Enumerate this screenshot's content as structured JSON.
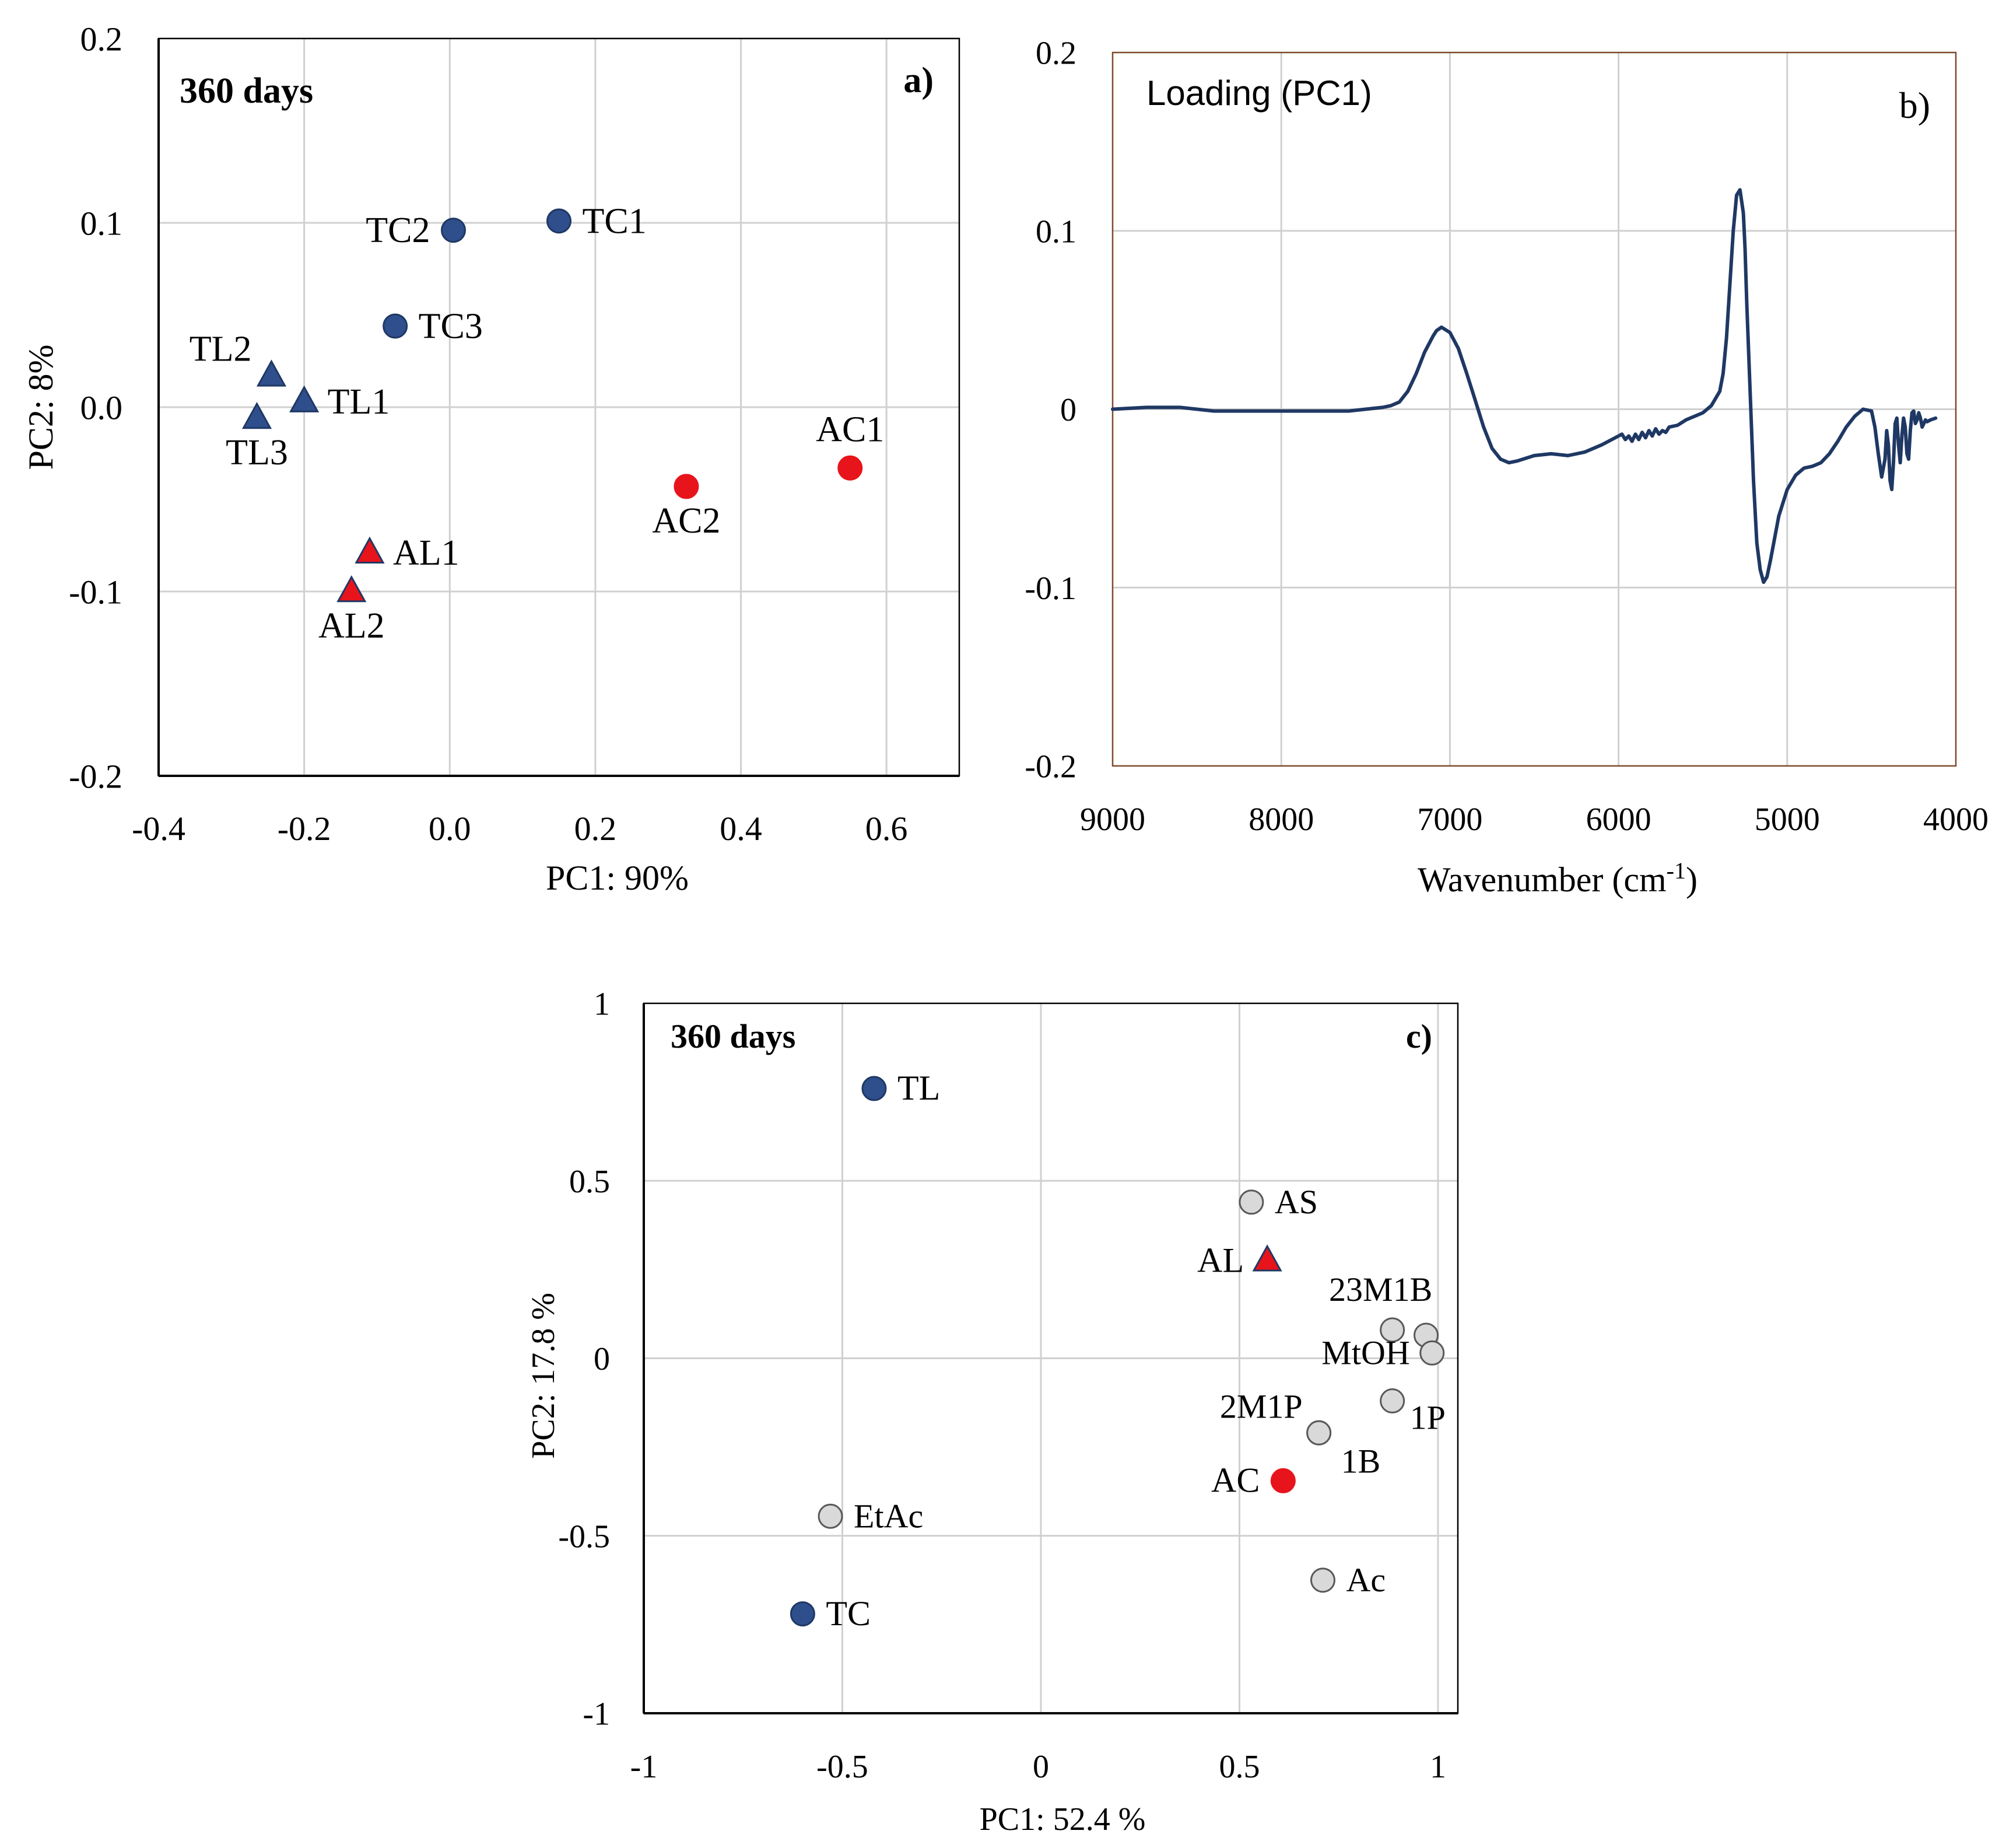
{
  "chart_data": [
    {
      "type": "scatter",
      "panel_label": "a)",
      "title": "360 days",
      "xlabel": "PC1: 90%",
      "ylabel": "PC2: 8%",
      "xlim": [
        -0.4,
        0.7
      ],
      "ylim": [
        -0.2,
        0.2
      ],
      "xticks": [
        -0.4,
        -0.2,
        0.0,
        0.2,
        0.4,
        0.6
      ],
      "xtick_labels": [
        "-0.4",
        "-0.2",
        "0.0",
        "0.2",
        "0.4",
        "0.6"
      ],
      "yticks": [
        -0.2,
        -0.1,
        0.0,
        0.1,
        0.2
      ],
      "ytick_labels": [
        "-0.2",
        "-0.1",
        "0.0",
        "0.1",
        "0.2"
      ],
      "grid": true,
      "points": [
        {
          "label": "TC1",
          "x": 0.15,
          "y": 0.101,
          "marker": "circle",
          "color": "#2F4E8C",
          "label_pos": "right"
        },
        {
          "label": "TC2",
          "x": 0.005,
          "y": 0.096,
          "marker": "circle",
          "color": "#2F4E8C",
          "label_pos": "left"
        },
        {
          "label": "TC3",
          "x": -0.075,
          "y": 0.044,
          "marker": "circle",
          "color": "#2F4E8C",
          "label_pos": "right"
        },
        {
          "label": "TL1",
          "x": -0.2,
          "y": 0.003,
          "marker": "triangle",
          "color": "#2F4E8C",
          "label_pos": "right"
        },
        {
          "label": "TL2",
          "x": -0.245,
          "y": 0.017,
          "marker": "triangle",
          "color": "#2F4E8C",
          "label_pos": "upper-left"
        },
        {
          "label": "TL3",
          "x": -0.265,
          "y": -0.006,
          "marker": "triangle",
          "color": "#2F4E8C",
          "label_pos": "below"
        },
        {
          "label": "AC1",
          "x": 0.55,
          "y": -0.033,
          "marker": "circle",
          "color": "#E8141C",
          "label_pos": "above"
        },
        {
          "label": "AC2",
          "x": 0.325,
          "y": -0.043,
          "marker": "circle",
          "color": "#E8141C",
          "label_pos": "below"
        },
        {
          "label": "AL1",
          "x": -0.11,
          "y": -0.079,
          "marker": "triangle",
          "color": "#E8141C",
          "label_pos": "right"
        },
        {
          "label": "AL2",
          "x": -0.135,
          "y": -0.1,
          "marker": "triangle",
          "color": "#E8141C",
          "label_pos": "below"
        }
      ]
    },
    {
      "type": "line",
      "panel_label": "b)",
      "title": "Loading (PC1)",
      "xlabel": "Wavenumber (cm",
      "xlabel_sup": "-1",
      "xlabel_end": ")",
      "ylabel": "",
      "xlim": [
        9000,
        4000
      ],
      "ylim": [
        -0.2,
        0.2
      ],
      "xticks": [
        9000,
        8000,
        7000,
        6000,
        5000,
        4000
      ],
      "xtick_labels": [
        "9000",
        "8000",
        "7000",
        "6000",
        "5000",
        "4000"
      ],
      "yticks": [
        -0.2,
        -0.1,
        0,
        0.1,
        0.2
      ],
      "ytick_labels": [
        "-0.2",
        "-0.1",
        "0",
        "0.1",
        "0.2"
      ],
      "grid": true,
      "line_color": "#1F3864",
      "series": [
        {
          "name": "Loading (PC1)",
          "x": [
            9000,
            8800,
            8700,
            8600,
            8500,
            8400,
            8300,
            8200,
            8100,
            8000,
            7800,
            7600,
            7500,
            7400,
            7350,
            7300,
            7250,
            7200,
            7150,
            7100,
            7080,
            7050,
            7000,
            6950,
            6900,
            6850,
            6800,
            6750,
            6700,
            6650,
            6600,
            6500,
            6400,
            6300,
            6200,
            6100,
            6000,
            5980,
            5960,
            5940,
            5920,
            5900,
            5880,
            5860,
            5840,
            5820,
            5800,
            5780,
            5760,
            5740,
            5720,
            5700,
            5650,
            5600,
            5550,
            5500,
            5450,
            5400,
            5380,
            5360,
            5340,
            5320,
            5300,
            5280,
            5260,
            5250,
            5240,
            5220,
            5200,
            5180,
            5160,
            5140,
            5120,
            5100,
            5080,
            5050,
            5000,
            4950,
            4900,
            4850,
            4800,
            4750,
            4700,
            4650,
            4600,
            4550,
            4500,
            4480,
            4460,
            4440,
            4420,
            4410,
            4400,
            4390,
            4380,
            4370,
            4360,
            4350,
            4340,
            4330,
            4320,
            4310,
            4300,
            4290,
            4280,
            4270,
            4260,
            4250,
            4240,
            4230,
            4220,
            4210,
            4200,
            4190,
            4180,
            4170,
            4150,
            4120
          ],
          "y": [
            0.0,
            0.001,
            0.001,
            0.001,
            0.0,
            -0.001,
            -0.001,
            -0.001,
            -0.001,
            -0.001,
            -0.001,
            -0.001,
            0.0,
            0.001,
            0.002,
            0.004,
            0.01,
            0.02,
            0.032,
            0.041,
            0.044,
            0.046,
            0.043,
            0.034,
            0.02,
            0.005,
            -0.01,
            -0.022,
            -0.028,
            -0.03,
            -0.029,
            -0.026,
            -0.025,
            -0.026,
            -0.024,
            -0.02,
            -0.015,
            -0.014,
            -0.017,
            -0.015,
            -0.018,
            -0.014,
            -0.017,
            -0.013,
            -0.016,
            -0.012,
            -0.015,
            -0.011,
            -0.014,
            -0.012,
            -0.013,
            -0.01,
            -0.009,
            -0.006,
            -0.004,
            -0.002,
            0.002,
            0.01,
            0.02,
            0.04,
            0.07,
            0.1,
            0.12,
            0.123,
            0.11,
            0.09,
            0.06,
            0.01,
            -0.04,
            -0.075,
            -0.09,
            -0.097,
            -0.094,
            -0.085,
            -0.075,
            -0.06,
            -0.045,
            -0.037,
            -0.033,
            -0.032,
            -0.03,
            -0.025,
            -0.018,
            -0.01,
            -0.004,
            0.0,
            -0.001,
            -0.01,
            -0.025,
            -0.038,
            -0.028,
            -0.012,
            -0.02,
            -0.04,
            -0.045,
            -0.03,
            -0.008,
            -0.005,
            -0.02,
            -0.03,
            -0.015,
            -0.005,
            -0.01,
            -0.025,
            -0.028,
            -0.012,
            -0.002,
            -0.001,
            -0.008,
            -0.006,
            -0.002,
            -0.005,
            -0.01,
            -0.008,
            -0.006,
            -0.007,
            -0.006,
            -0.005
          ]
        }
      ]
    },
    {
      "type": "scatter",
      "panel_label": "c)",
      "title": "360 days",
      "xlabel": "PC1: 52.4 %",
      "ylabel": "PC2: 17.8 %",
      "xlim": [
        -1,
        1.05
      ],
      "ylim": [
        -1,
        1
      ],
      "xticks": [
        -1,
        -0.5,
        0,
        0.5,
        1
      ],
      "xtick_labels": [
        "-1",
        "-0.5",
        "0",
        "0.5",
        "1"
      ],
      "yticks": [
        -1,
        -0.5,
        0,
        0.5,
        1
      ],
      "ytick_labels": [
        "-1",
        "-0.5",
        "0",
        "0.5",
        "1"
      ],
      "grid": true,
      "points": [
        {
          "label": "TL",
          "x": -0.42,
          "y": 0.76,
          "marker": "circle",
          "color": "#2F4E8C",
          "label_pos": "right"
        },
        {
          "label": "TC",
          "x": -0.6,
          "y": -0.72,
          "marker": "circle",
          "color": "#2F4E8C",
          "label_pos": "right"
        },
        {
          "label": "AL",
          "x": 0.57,
          "y": 0.275,
          "marker": "triangle",
          "color": "#E8141C",
          "label_pos": "left"
        },
        {
          "label": "AC",
          "x": 0.61,
          "y": -0.345,
          "marker": "circle",
          "color": "#E8141C",
          "label_pos": "left"
        },
        {
          "label": "AS",
          "x": 0.53,
          "y": 0.44,
          "marker": "circle",
          "color": "#D9D9D9",
          "label_pos": "right"
        },
        {
          "label": "23M1B",
          "x": 0.885,
          "y": 0.08,
          "marker": "circle",
          "color": "#D9D9D9",
          "label_pos": "above"
        },
        {
          "label": "",
          "x": 0.97,
          "y": 0.065,
          "marker": "circle",
          "color": "#D9D9D9",
          "label_pos": "none"
        },
        {
          "label": "MtOH",
          "x": 0.985,
          "y": 0.015,
          "marker": "circle",
          "color": "#D9D9D9",
          "label_pos": "left"
        },
        {
          "label": "1P",
          "x": 0.885,
          "y": -0.12,
          "marker": "circle",
          "color": "#D9D9D9",
          "label_pos": "upper-right"
        },
        {
          "label": "2M1P",
          "x": 0.7,
          "y": -0.21,
          "marker": "circle",
          "color": "#D9D9D9",
          "label_pos": "upper-left"
        },
        {
          "label": "1B",
          "x": 0.7,
          "y": -0.21,
          "marker": "circle",
          "color": "#D9D9D9",
          "label_pos": "lower-right"
        },
        {
          "label": "EtAc",
          "x": -0.53,
          "y": -0.445,
          "marker": "circle",
          "color": "#D9D9D9",
          "label_pos": "right"
        },
        {
          "label": "Ac",
          "x": 0.71,
          "y": -0.625,
          "marker": "circle",
          "color": "#D9D9D9",
          "label_pos": "right"
        }
      ]
    }
  ]
}
